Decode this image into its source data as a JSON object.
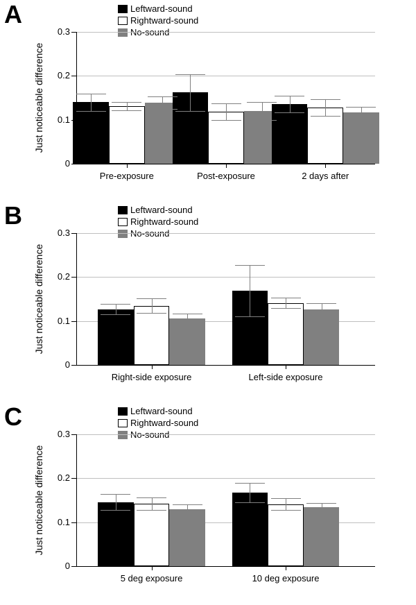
{
  "colors": {
    "series": {
      "leftward": {
        "fill": "#000000",
        "border": "#000000"
      },
      "rightward": {
        "fill": "#ffffff",
        "border": "#000000"
      },
      "nosound": {
        "fill": "#808080",
        "border": "#808080"
      }
    },
    "axis": "#000000",
    "grid": "#bfbfbf",
    "error_bar": "#808080",
    "background": "#ffffff"
  },
  "typography": {
    "panel_label_fontsize": 36,
    "panel_label_weight": "bold",
    "axis_label_fontsize": 14,
    "tick_label_fontsize": 13,
    "legend_fontsize": 13,
    "font_family": "Arial"
  },
  "legend_labels": {
    "leftward": "Leftward-sound",
    "rightward": "Rightward-sound",
    "nosound": "No-sound"
  },
  "y_axis": {
    "label": "Just noticeable difference",
    "ylim": [
      0,
      0.3
    ],
    "ticks": [
      0,
      0.1,
      0.2,
      0.3
    ],
    "tick_labels": [
      "0",
      "0.1",
      "0.2",
      "0.3"
    ]
  },
  "chart_layout": {
    "type": "bar",
    "bar_width": 0.12,
    "cap_width": 0.1,
    "grid_on_y": true
  },
  "panels": [
    {
      "id": "A",
      "categories": [
        "Pre-exposure",
        "Post-exposure",
        "2 days after"
      ],
      "category_centers": [
        0.167,
        0.5,
        0.833
      ],
      "data": [
        {
          "leftward": {
            "v": 0.14,
            "e": 0.02
          },
          "rightward": {
            "v": 0.131,
            "e": 0.01
          },
          "nosound": {
            "v": 0.139,
            "e": 0.014
          }
        },
        {
          "leftward": {
            "v": 0.162,
            "e": 0.042
          },
          "rightward": {
            "v": 0.118,
            "e": 0.019
          },
          "nosound": {
            "v": 0.12,
            "e": 0.021
          }
        },
        {
          "leftward": {
            "v": 0.136,
            "e": 0.019
          },
          "rightward": {
            "v": 0.128,
            "e": 0.019
          },
          "nosound": {
            "v": 0.117,
            "e": 0.013
          }
        }
      ]
    },
    {
      "id": "B",
      "categories": [
        "Right-side exposure",
        "Left-side exposure"
      ],
      "category_centers": [
        0.25,
        0.7
      ],
      "data": [
        {
          "leftward": {
            "v": 0.127,
            "e": 0.012
          },
          "rightward": {
            "v": 0.135,
            "e": 0.017
          },
          "nosound": {
            "v": 0.106,
            "e": 0.011
          }
        },
        {
          "leftward": {
            "v": 0.169,
            "e": 0.058
          },
          "rightward": {
            "v": 0.141,
            "e": 0.012
          },
          "nosound": {
            "v": 0.127,
            "e": 0.014
          }
        }
      ]
    },
    {
      "id": "C",
      "categories": [
        "5 deg exposure",
        "10 deg exposure"
      ],
      "category_centers": [
        0.25,
        0.7
      ],
      "data": [
        {
          "leftward": {
            "v": 0.146,
            "e": 0.018
          },
          "rightward": {
            "v": 0.142,
            "e": 0.014
          },
          "nosound": {
            "v": 0.129,
            "e": 0.011
          }
        },
        {
          "leftward": {
            "v": 0.167,
            "e": 0.022
          },
          "rightward": {
            "v": 0.141,
            "e": 0.013
          },
          "nosound": {
            "v": 0.134,
            "e": 0.009
          }
        }
      ]
    }
  ]
}
